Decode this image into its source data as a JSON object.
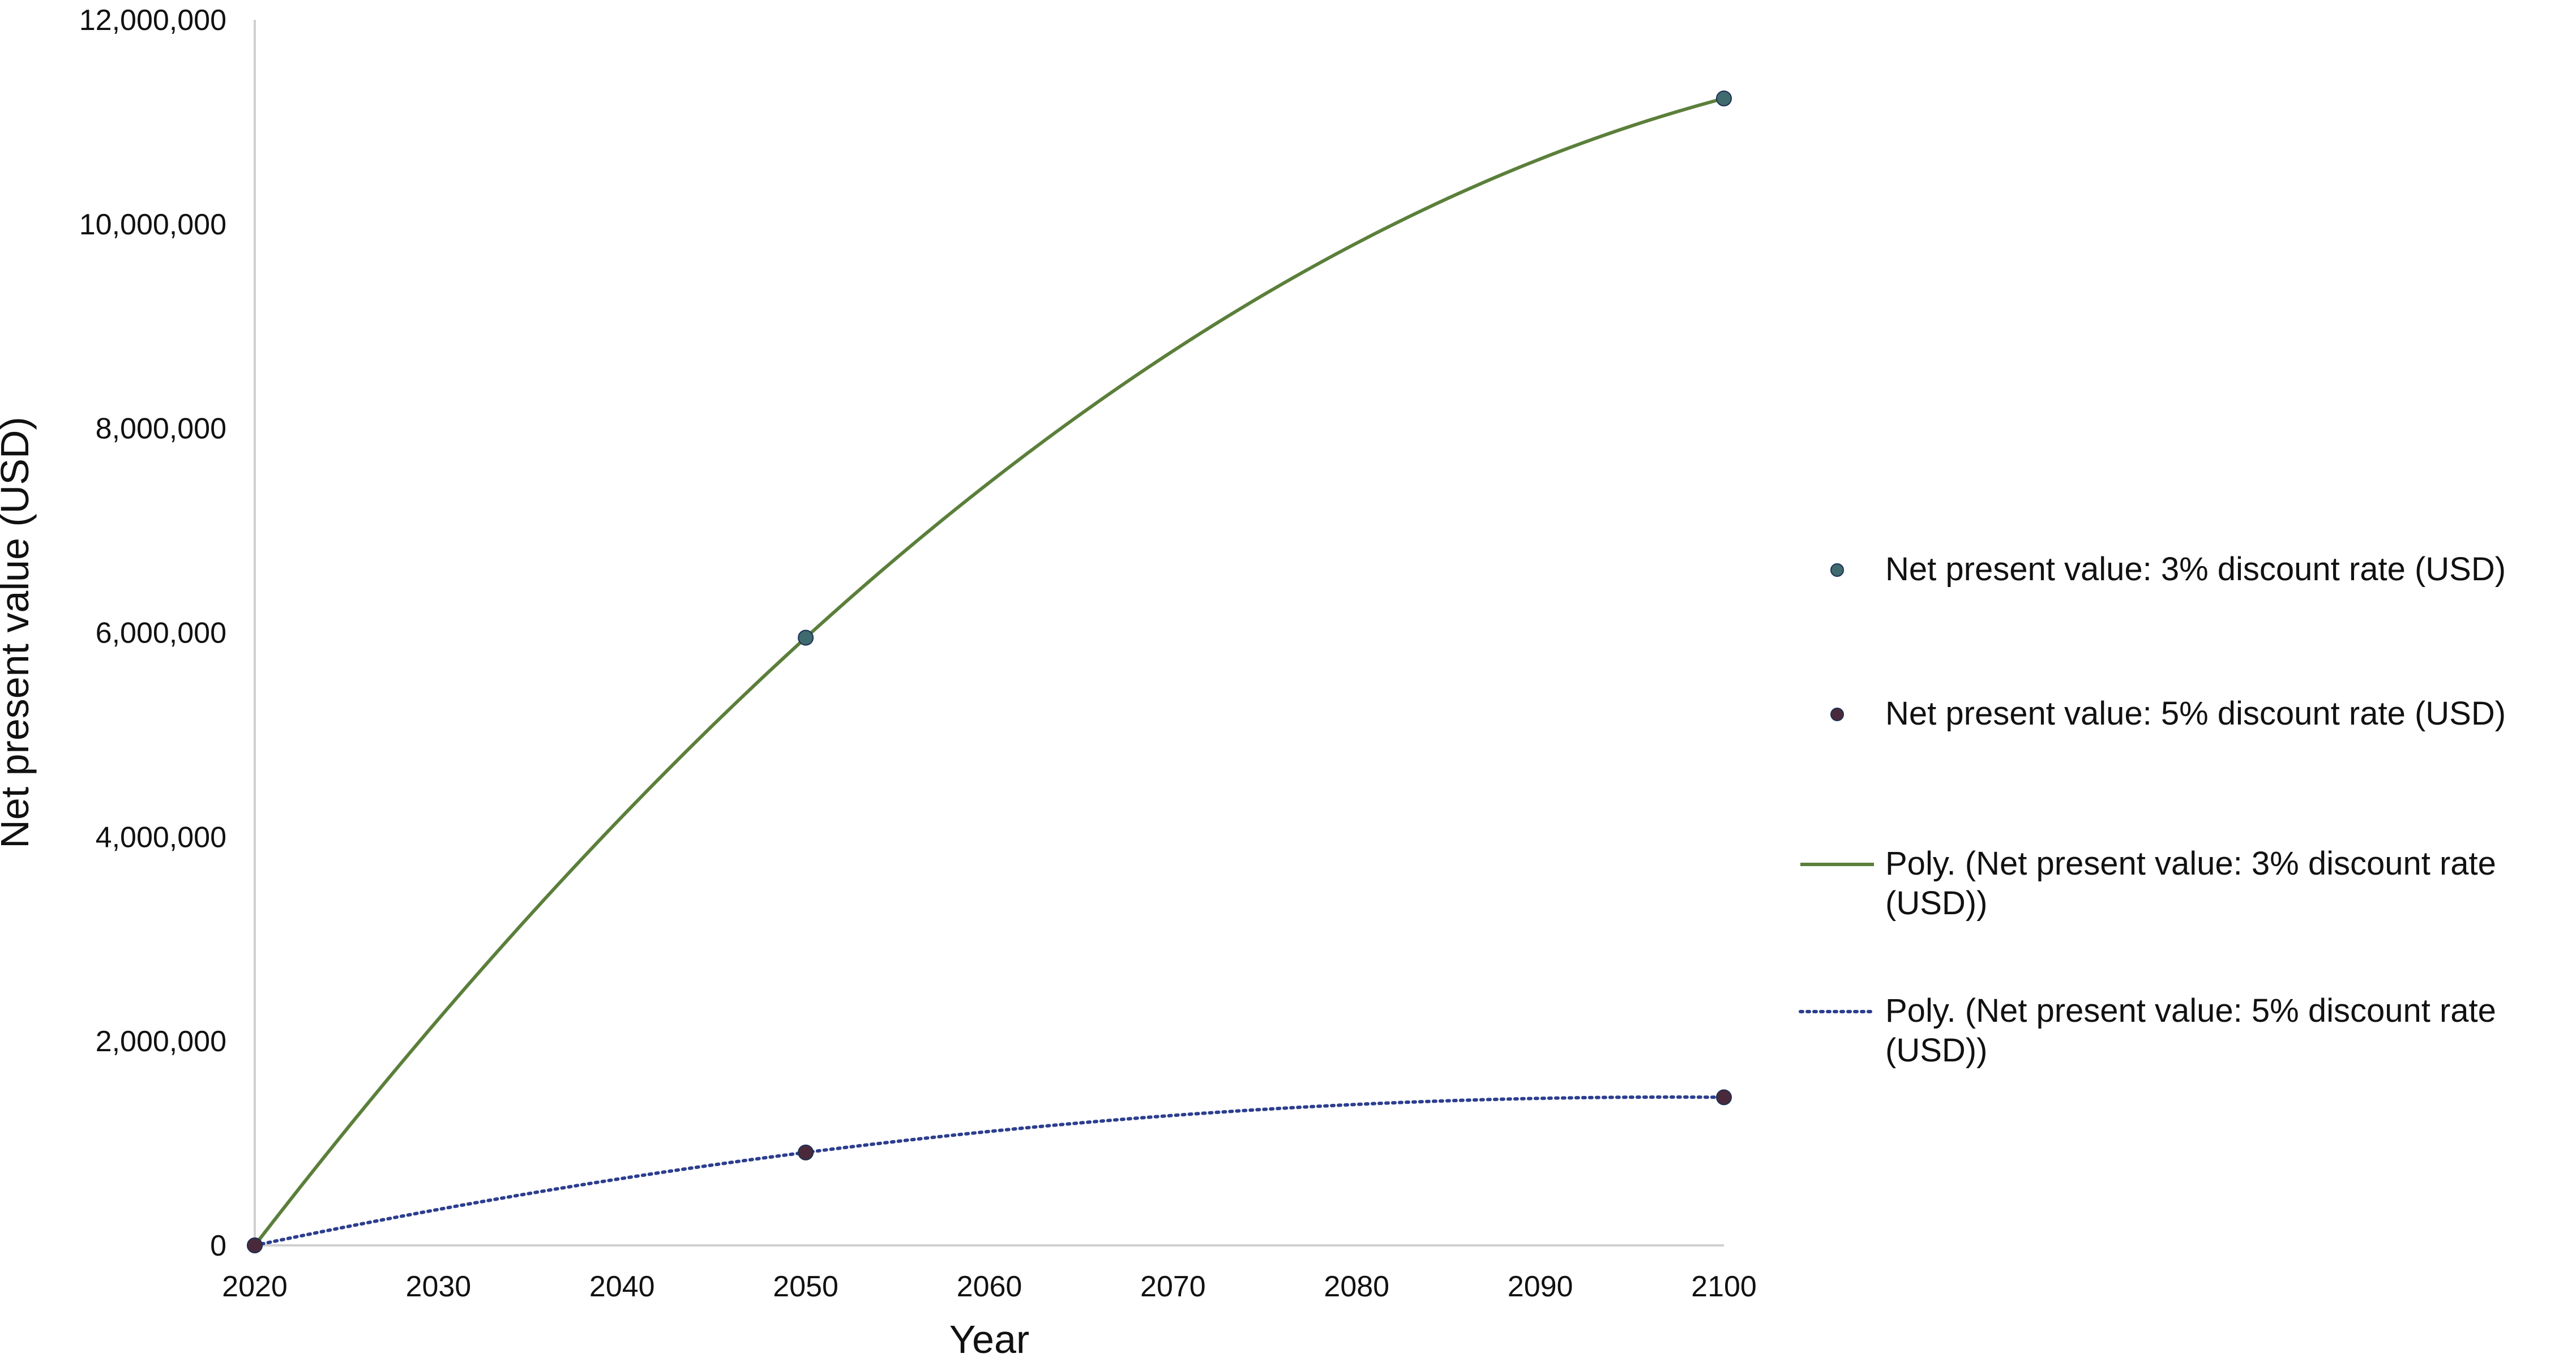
{
  "chart_data": {
    "type": "scatter",
    "xlabel": "Year",
    "ylabel": "Net present value (USD)",
    "xlim": [
      2020,
      2100
    ],
    "ylim": [
      0,
      12000000
    ],
    "x_ticks": [
      2020,
      2030,
      2040,
      2050,
      2060,
      2070,
      2080,
      2090,
      2100
    ],
    "y_ticks": [
      0,
      2000000,
      4000000,
      6000000,
      8000000,
      10000000,
      12000000
    ],
    "y_tick_labels": [
      "0",
      "2,000,000",
      "4,000,000",
      "6,000,000",
      "8,000,000",
      "10,000,000",
      "12,000,000"
    ],
    "grid": false,
    "legend_position": "right",
    "series": [
      {
        "name": "Net present value: 3% discount rate (USD)",
        "kind": "scatter",
        "color": "#3f6b6e",
        "points": [
          {
            "x": 2020,
            "y": 0
          },
          {
            "x": 2050,
            "y": 5950000
          },
          {
            "x": 2100,
            "y": 11230000
          }
        ]
      },
      {
        "name": "Net present value: 5% discount rate (USD)",
        "kind": "scatter",
        "color": "#4a2a3a",
        "points": [
          {
            "x": 2020,
            "y": 0
          },
          {
            "x": 2050,
            "y": 910000
          },
          {
            "x": 2100,
            "y": 1450000
          }
        ]
      },
      {
        "name": "Poly. (Net present value: 3% discount rate (USD))",
        "kind": "trendline",
        "style": "solid",
        "color": "#5b7f3a",
        "fit_of": 0
      },
      {
        "name": "Poly. (Net present value: 5% discount rate (USD))",
        "kind": "trendline",
        "style": "dotted",
        "color": "#2c3e8f",
        "fit_of": 1
      }
    ]
  }
}
